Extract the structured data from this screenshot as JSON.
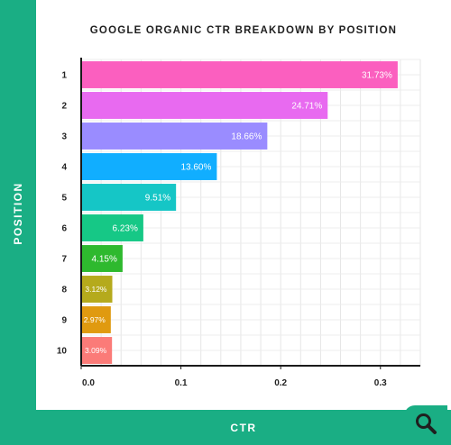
{
  "chart_data": {
    "type": "bar",
    "orientation": "horizontal",
    "title": "GOOGLE ORGANIC CTR BREAKDOWN BY POSITION",
    "xlabel": "CTR",
    "ylabel": "POSITION",
    "xlim": [
      0,
      0.34
    ],
    "x_ticks": [
      "0.0",
      "0.1",
      "0.2",
      "0.3"
    ],
    "x_tick_values": [
      0,
      0.1,
      0.2,
      0.3
    ],
    "grid": true,
    "categories": [
      "1",
      "2",
      "3",
      "4",
      "5",
      "6",
      "7",
      "8",
      "9",
      "10"
    ],
    "values": [
      0.3173,
      0.2471,
      0.1866,
      0.136,
      0.0951,
      0.0623,
      0.0415,
      0.0312,
      0.0297,
      0.0309
    ],
    "labels": [
      "31.73%",
      "24.71%",
      "18.66%",
      "13.60%",
      "9.51%",
      "6.23%",
      "4.15%",
      "3.12%",
      "2.97%",
      "3.09%"
    ],
    "colors": [
      "#fb5fbf",
      "#e86af0",
      "#9a8cff",
      "#11aeff",
      "#15c6c6",
      "#16c886",
      "#2eb92e",
      "#b5aa1c",
      "#e09a10",
      "#fb7b78"
    ]
  },
  "search_icon": "magnifier-icon",
  "accent_color": "#1aae84"
}
